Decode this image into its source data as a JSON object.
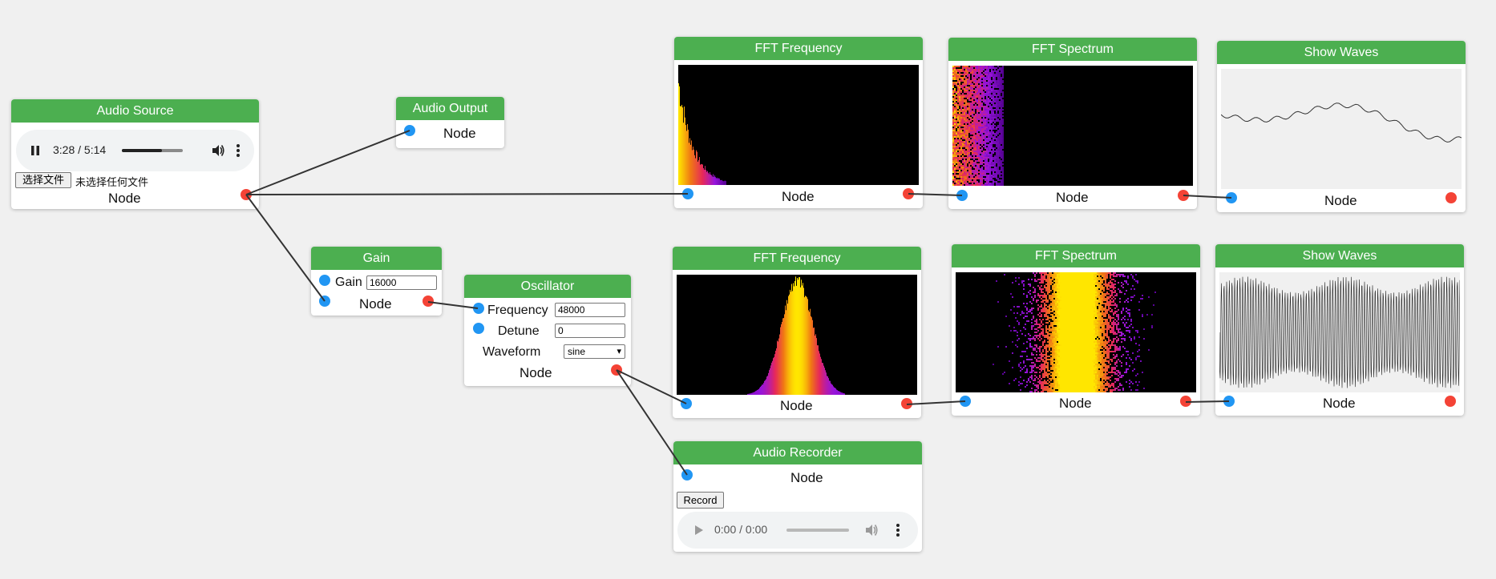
{
  "colors": {
    "header": "#4caf50",
    "input_port": "#2196f3",
    "output_port": "#f44336",
    "wire": "#333333"
  },
  "nodes": {
    "audio_source": {
      "title": "Audio Source",
      "label": "Node",
      "player": {
        "time": "3:28 / 5:14",
        "state": "playing",
        "progress": 0.66,
        "volume_icon": "volume-icon",
        "more_icon": "more-icon"
      },
      "file_button": "选择文件",
      "file_status": "未选择任何文件"
    },
    "audio_output": {
      "title": "Audio Output",
      "label": "Node"
    },
    "fft_freq_top": {
      "title": "FFT Frequency",
      "label": "Node"
    },
    "fft_spec_top": {
      "title": "FFT Spectrum",
      "label": "Node"
    },
    "waves_top": {
      "title": "Show Waves",
      "label": "Node"
    },
    "gain": {
      "title": "Gain",
      "label": "Node",
      "param_label": "Gain",
      "value": "16000"
    },
    "oscillator": {
      "title": "Oscillator",
      "label": "Node",
      "frequency_label": "Frequency",
      "frequency_value": "48000",
      "detune_label": "Detune",
      "detune_value": "0",
      "waveform_label": "Waveform",
      "waveform_value": "sine"
    },
    "fft_freq_bottom": {
      "title": "FFT Frequency",
      "label": "Node"
    },
    "fft_spec_bottom": {
      "title": "FFT Spectrum",
      "label": "Node"
    },
    "waves_bottom": {
      "title": "Show Waves",
      "label": "Node"
    },
    "audio_recorder": {
      "title": "Audio Recorder",
      "label": "Node",
      "record_button": "Record",
      "player": {
        "time": "0:00 / 0:00",
        "state": "disabled"
      }
    }
  }
}
